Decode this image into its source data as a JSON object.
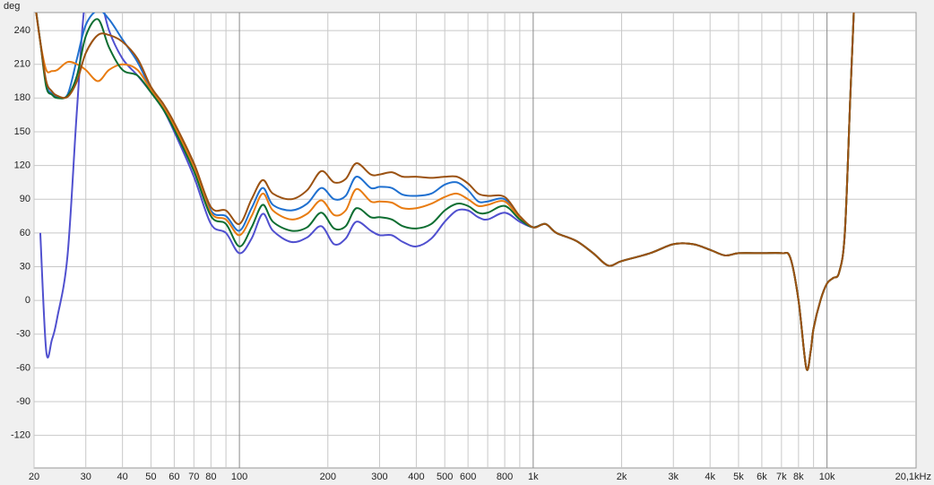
{
  "chart_data": {
    "type": "line",
    "ylabel": "deg",
    "xscale": "log",
    "grid": true,
    "xlim": [
      20,
      20100
    ],
    "ylim": [
      -149,
      256
    ],
    "xticks": [
      20,
      30,
      40,
      50,
      60,
      70,
      80,
      100,
      200,
      300,
      400,
      500,
      600,
      800,
      {
        "value": 1000,
        "label": "1k"
      },
      {
        "value": 2000,
        "label": "2k"
      },
      {
        "value": 3000,
        "label": "3k"
      },
      {
        "value": 4000,
        "label": "4k"
      },
      {
        "value": 5000,
        "label": "5k"
      },
      {
        "value": 6000,
        "label": "6k"
      },
      {
        "value": 7000,
        "label": "7k"
      },
      {
        "value": 8000,
        "label": "8k"
      },
      {
        "value": 10000,
        "label": "10k"
      },
      {
        "value": 20100,
        "label": "20,1kHz"
      }
    ],
    "xminorticks": [
      90,
      700,
      900,
      9000
    ],
    "yticks": [
      240,
      210,
      180,
      150,
      120,
      90,
      60,
      30,
      0,
      -30,
      -60,
      -90,
      -120
    ],
    "x": [
      20,
      21,
      22,
      23,
      24,
      26,
      28,
      30,
      33,
      36,
      40,
      45,
      50,
      55,
      60,
      70,
      80,
      90,
      100,
      110,
      120,
      130,
      150,
      170,
      190,
      210,
      230,
      250,
      280,
      300,
      330,
      360,
      400,
      450,
      500,
      550,
      600,
      650,
      700,
      800,
      900,
      1000,
      1100,
      1200,
      1400,
      1600,
      1800,
      2000,
      2500,
      3000,
      3500,
      4000,
      4500,
      5000,
      6000,
      7000,
      7500,
      8000,
      8500,
      8800,
      9000,
      9500,
      10000,
      10500,
      11000,
      11500,
      12000,
      12400
    ],
    "series": [
      {
        "color": "#5050cf",
        "values": [
          null,
          60,
          -45,
          -35,
          -15,
          40,
          170,
          270,
          275,
          240,
          215,
          200,
          185,
          170,
          150,
          110,
          68,
          60,
          42,
          55,
          77,
          62,
          52,
          56,
          66,
          50,
          55,
          70,
          62,
          58,
          58,
          52,
          48,
          55,
          70,
          80,
          80,
          74,
          72,
          78,
          70,
          65,
          68,
          60,
          53,
          42,
          31,
          35,
          42,
          50,
          50,
          45,
          40,
          42,
          42,
          42,
          38,
          0,
          -60,
          -45,
          -25,
          0,
          15,
          20,
          25,
          60,
          180,
          270
        ]
      },
      {
        "color": "#1f70d0",
        "values": [
          270,
          230,
          192,
          184,
          181,
          183,
          215,
          245,
          258,
          250,
          232,
          212,
          188,
          172,
          156,
          120,
          80,
          75,
          62,
          82,
          100,
          85,
          80,
          86,
          100,
          90,
          93,
          110,
          100,
          101,
          100,
          94,
          93,
          95,
          103,
          105,
          98,
          88,
          88,
          90,
          74,
          65,
          68,
          60,
          53,
          42,
          31,
          35,
          42,
          50,
          50,
          45,
          40,
          42,
          42,
          42,
          38,
          0,
          -60,
          -45,
          -25,
          0,
          15,
          20,
          25,
          60,
          180,
          270
        ]
      },
      {
        "color": "#e87c12",
        "values": [
          270,
          230,
          205,
          204,
          205,
          212,
          210,
          205,
          195,
          205,
          210,
          205,
          187,
          172,
          155,
          118,
          78,
          72,
          58,
          75,
          95,
          80,
          72,
          77,
          89,
          76,
          80,
          99,
          88,
          88,
          87,
          82,
          82,
          86,
          92,
          95,
          90,
          84,
          85,
          88,
          73,
          65,
          68,
          60,
          53,
          42,
          31,
          35,
          42,
          50,
          50,
          45,
          40,
          42,
          42,
          42,
          38,
          0,
          -60,
          -45,
          -25,
          0,
          15,
          20,
          25,
          60,
          180,
          270
        ]
      },
      {
        "color": "#0e6e32",
        "values": [
          270,
          230,
          190,
          183,
          180,
          182,
          200,
          235,
          250,
          225,
          205,
          200,
          185,
          170,
          152,
          115,
          75,
          68,
          48,
          65,
          85,
          70,
          62,
          65,
          78,
          64,
          66,
          82,
          74,
          74,
          72,
          66,
          64,
          68,
          80,
          86,
          84,
          78,
          78,
          84,
          72,
          65,
          68,
          60,
          53,
          42,
          31,
          35,
          42,
          50,
          50,
          45,
          40,
          42,
          42,
          42,
          38,
          0,
          -60,
          -45,
          -25,
          0,
          15,
          20,
          25,
          60,
          180,
          270
        ]
      },
      {
        "color": "#9b5212",
        "values": [
          270,
          230,
          195,
          186,
          182,
          181,
          195,
          220,
          236,
          236,
          230,
          215,
          190,
          175,
          158,
          122,
          83,
          80,
          68,
          90,
          107,
          95,
          90,
          98,
          115,
          105,
          108,
          122,
          112,
          112,
          114,
          110,
          110,
          109,
          110,
          110,
          104,
          95,
          93,
          92,
          75,
          65,
          68,
          60,
          53,
          42,
          31,
          35,
          42,
          50,
          50,
          45,
          40,
          42,
          42,
          42,
          38,
          0,
          -60,
          -45,
          -25,
          0,
          15,
          20,
          25,
          60,
          180,
          270
        ]
      }
    ]
  }
}
